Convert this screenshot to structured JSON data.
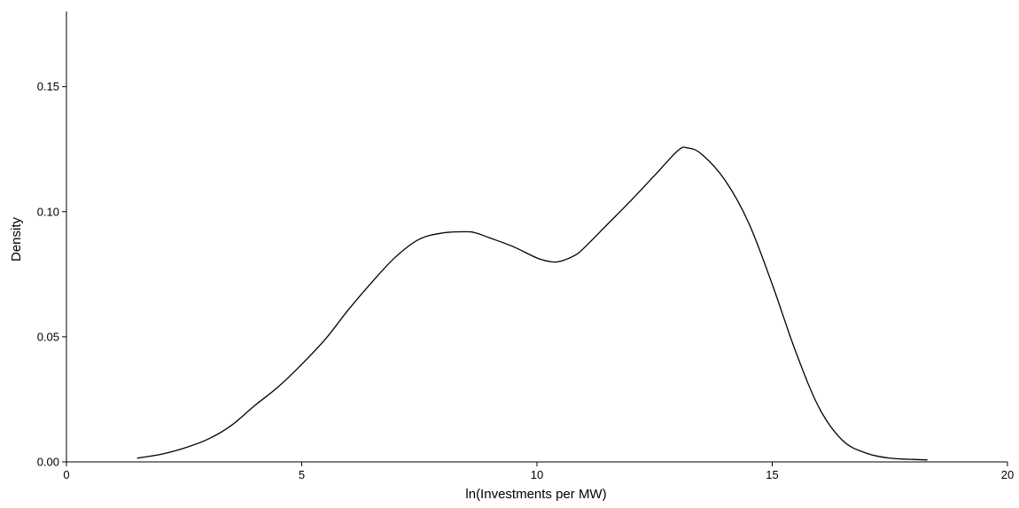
{
  "chart_data": {
    "type": "line",
    "title": "",
    "xlabel": "ln(Investments per MW)",
    "ylabel": "Density",
    "xlim": [
      0,
      20
    ],
    "ylim": [
      0,
      0.18
    ],
    "x_ticks": [
      0,
      5,
      10,
      15,
      20
    ],
    "x_tick_labels": [
      "0",
      "5",
      "10",
      "15",
      "20"
    ],
    "y_ticks": [
      0,
      0.05,
      0.1,
      0.15
    ],
    "y_tick_labels": [
      "0.00",
      "0.05",
      "0.10",
      "0.15"
    ],
    "grid": false,
    "series": [
      {
        "color": "#000000",
        "x": [
          1.5,
          2.0,
          2.5,
          3.0,
          3.5,
          4.0,
          4.5,
          5.0,
          5.5,
          6.0,
          6.5,
          7.0,
          7.5,
          8.0,
          8.5,
          8.7,
          9.0,
          9.5,
          10.0,
          10.3,
          10.5,
          10.8,
          11.0,
          11.5,
          12.0,
          12.5,
          13.0,
          13.2,
          13.5,
          14.0,
          14.5,
          15.0,
          15.5,
          16.0,
          16.5,
          17.0,
          17.5,
          18.0,
          18.3
        ],
        "y": [
          0.0015,
          0.003,
          0.0055,
          0.009,
          0.0145,
          0.0225,
          0.03,
          0.039,
          0.049,
          0.061,
          0.072,
          0.082,
          0.089,
          0.0915,
          0.092,
          0.0915,
          0.0895,
          0.086,
          0.0815,
          0.08,
          0.0802,
          0.0825,
          0.0855,
          0.095,
          0.1045,
          0.1145,
          0.1245,
          0.1255,
          0.123,
          0.1125,
          0.0955,
          0.071,
          0.044,
          0.0215,
          0.0085,
          0.0035,
          0.0015,
          0.001,
          0.0008
        ]
      }
    ]
  }
}
